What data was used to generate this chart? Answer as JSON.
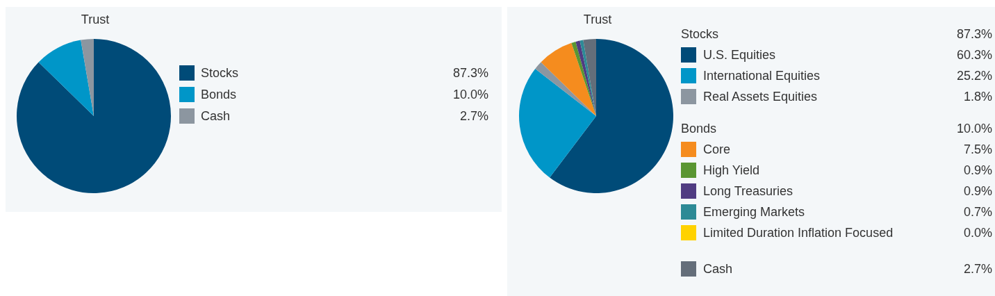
{
  "chart_data": [
    {
      "type": "pie",
      "title": "Trust",
      "categories": [
        "Stocks",
        "Bonds",
        "Cash"
      ],
      "values": [
        87.3,
        10.0,
        2.7
      ],
      "colors": [
        "#004b78",
        "#0096c8",
        "#8c96a0"
      ],
      "value_labels": [
        "87.3%",
        "10.0%",
        "2.7%"
      ],
      "legend": "right"
    },
    {
      "type": "pie",
      "title": "Trust",
      "categories": [
        "U.S. Equities",
        "International Equities",
        "Real Assets Equities",
        "Core",
        "High Yield",
        "Long Treasuries",
        "Emerging Markets",
        "Limited Duration Inflation Focused",
        "Cash"
      ],
      "values": [
        60.3,
        25.2,
        1.8,
        7.5,
        0.9,
        0.9,
        0.7,
        0.0,
        2.7
      ],
      "colors": [
        "#004b78",
        "#0096c8",
        "#8c96a0",
        "#f58c1e",
        "#5a9632",
        "#503c82",
        "#2d8a96",
        "#ffd200",
        "#646e7a"
      ],
      "value_labels": [
        "60.3%",
        "25.2%",
        "1.8%",
        "7.5%",
        "0.9%",
        "0.9%",
        "0.7%",
        "0.0%",
        "2.7%"
      ],
      "legend": "right",
      "annotations": [
        "Stocks",
        "87.3%",
        "Bonds",
        "10.0%"
      ]
    }
  ]
}
